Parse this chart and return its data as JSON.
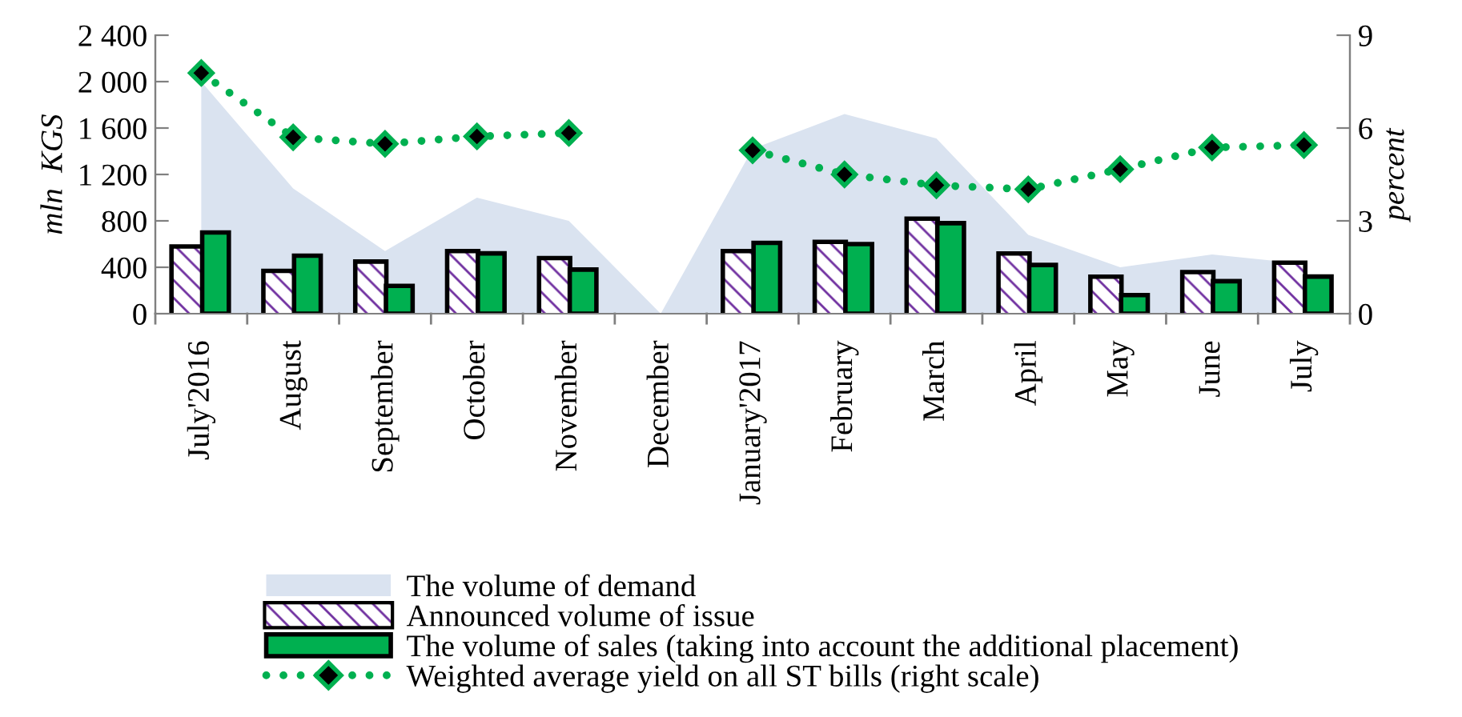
{
  "chart_data": {
    "type": "bar",
    "ylabel": "mln  KGS",
    "y2label": "percent",
    "categories": [
      "July'2016",
      "August",
      "September",
      "October",
      "November",
      "December",
      "January'2017",
      "February",
      "March",
      "April",
      "May",
      "June",
      "July"
    ],
    "series": [
      {
        "name": "The volume of demand",
        "type": "area",
        "color": "#dae3f0",
        "values": [
          2000,
          1080,
          540,
          1000,
          800,
          0,
          1420,
          1720,
          1510,
          680,
          400,
          510,
          430
        ]
      },
      {
        "name": "Announced volume of issue",
        "color": "#7030a0",
        "values": [
          560,
          350,
          430,
          520,
          460,
          null,
          520,
          600,
          800,
          500,
          300,
          340,
          420
        ]
      },
      {
        "name": "The volume of sales (taking into account the additional placement)",
        "color": "#00b050",
        "values": [
          700,
          500,
          240,
          520,
          380,
          null,
          610,
          600,
          780,
          420,
          160,
          280,
          320
        ]
      },
      {
        "name": "Weighted average yield on all ST bills (right scale)",
        "type": "line",
        "axis": "y2",
        "color": "#00b050",
        "marker": "diamond",
        "line_style": "dotted",
        "values": [
          7.78,
          5.7,
          5.49,
          5.73,
          5.84,
          null,
          5.28,
          4.5,
          4.15,
          4.02,
          4.67,
          5.37,
          5.45
        ]
      }
    ],
    "ylim": [
      0,
      2400
    ],
    "yticks": [
      0,
      400,
      800,
      {
        "value": 1200,
        "label": "1 200"
      },
      {
        "value": 1600,
        "label": "1 600"
      },
      {
        "value": 2000,
        "label": "2 000"
      },
      {
        "value": 2400,
        "label": "2 400"
      }
    ],
    "y2lim": [
      0,
      9
    ],
    "y2ticks": [
      0,
      3,
      6,
      9
    ],
    "grid": false,
    "legend": "bottom"
  }
}
